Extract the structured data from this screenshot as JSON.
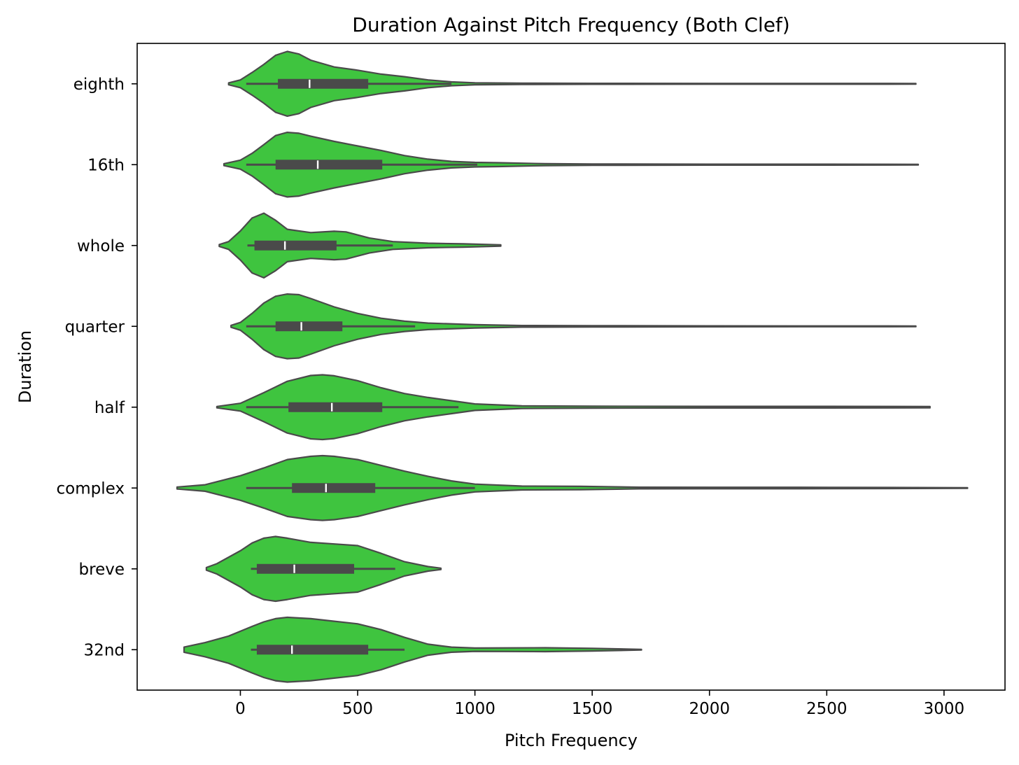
{
  "chart_data": {
    "type": "violin",
    "orientation": "horizontal",
    "title": "Duration Against Pitch Frequency (Both Clef)",
    "xlabel": "Pitch Frequency",
    "ylabel": "Duration",
    "xlim": [
      -440,
      3260
    ],
    "xticks": [
      0,
      500,
      1000,
      1500,
      2000,
      2500,
      3000
    ],
    "categories": [
      "eighth",
      "16th",
      "whole",
      "quarter",
      "half",
      "complex",
      "breve",
      "32nd"
    ],
    "colors": {
      "fill": "#3fc43f",
      "edge": "#4a4a4a",
      "median": "#ffffff"
    },
    "grid": false,
    "legend": "none",
    "series": [
      {
        "category": "eighth",
        "q1": 160,
        "median": 295,
        "q3": 545,
        "whisker_low": 25,
        "whisker_high": 900,
        "range": [
          -50,
          2880
        ],
        "density": [
          [
            -50,
            0.03
          ],
          [
            0,
            0.12
          ],
          [
            50,
            0.35
          ],
          [
            100,
            0.6
          ],
          [
            150,
            0.88
          ],
          [
            200,
            1.0
          ],
          [
            250,
            0.92
          ],
          [
            300,
            0.73
          ],
          [
            400,
            0.52
          ],
          [
            500,
            0.42
          ],
          [
            600,
            0.3
          ],
          [
            700,
            0.22
          ],
          [
            800,
            0.12
          ],
          [
            900,
            0.06
          ],
          [
            1000,
            0.03
          ],
          [
            1200,
            0.02
          ],
          [
            1500,
            0.015
          ],
          [
            2000,
            0.012
          ],
          [
            2500,
            0.012
          ],
          [
            2880,
            0.01
          ]
        ]
      },
      {
        "category": "16th",
        "q1": 150,
        "median": 330,
        "q3": 605,
        "whisker_low": 25,
        "whisker_high": 1010,
        "range": [
          -70,
          2890
        ],
        "density": [
          [
            -70,
            0.03
          ],
          [
            0,
            0.14
          ],
          [
            50,
            0.35
          ],
          [
            100,
            0.62
          ],
          [
            150,
            0.9
          ],
          [
            200,
            1.0
          ],
          [
            250,
            0.97
          ],
          [
            300,
            0.88
          ],
          [
            400,
            0.72
          ],
          [
            500,
            0.58
          ],
          [
            600,
            0.44
          ],
          [
            700,
            0.28
          ],
          [
            800,
            0.17
          ],
          [
            900,
            0.1
          ],
          [
            1000,
            0.07
          ],
          [
            1100,
            0.06
          ],
          [
            1300,
            0.03
          ],
          [
            1500,
            0.02
          ],
          [
            2000,
            0.015
          ],
          [
            2500,
            0.013
          ],
          [
            2890,
            0.01
          ]
        ]
      },
      {
        "category": "whole",
        "q1": 60,
        "median": 190,
        "q3": 410,
        "whisker_low": 30,
        "whisker_high": 650,
        "range": [
          -90,
          1110
        ],
        "density": [
          [
            -90,
            0.03
          ],
          [
            -50,
            0.12
          ],
          [
            0,
            0.45
          ],
          [
            50,
            0.85
          ],
          [
            100,
            1.0
          ],
          [
            150,
            0.78
          ],
          [
            200,
            0.5
          ],
          [
            300,
            0.4
          ],
          [
            400,
            0.44
          ],
          [
            450,
            0.42
          ],
          [
            550,
            0.23
          ],
          [
            650,
            0.12
          ],
          [
            800,
            0.07
          ],
          [
            950,
            0.05
          ],
          [
            1110,
            0.02
          ]
        ]
      },
      {
        "category": "quarter",
        "q1": 150,
        "median": 260,
        "q3": 435,
        "whisker_low": 25,
        "whisker_high": 745,
        "range": [
          -40,
          2880
        ],
        "density": [
          [
            -40,
            0.03
          ],
          [
            0,
            0.12
          ],
          [
            50,
            0.4
          ],
          [
            100,
            0.72
          ],
          [
            150,
            0.93
          ],
          [
            200,
            1.0
          ],
          [
            250,
            0.98
          ],
          [
            300,
            0.86
          ],
          [
            400,
            0.6
          ],
          [
            500,
            0.4
          ],
          [
            600,
            0.25
          ],
          [
            700,
            0.16
          ],
          [
            800,
            0.1
          ],
          [
            1000,
            0.05
          ],
          [
            1200,
            0.025
          ],
          [
            1500,
            0.02
          ],
          [
            2000,
            0.015
          ],
          [
            2500,
            0.012
          ],
          [
            2880,
            0.01
          ]
        ]
      },
      {
        "category": "half",
        "q1": 205,
        "median": 390,
        "q3": 605,
        "whisker_low": 25,
        "whisker_high": 930,
        "range": [
          -100,
          2940
        ],
        "density": [
          [
            -100,
            0.02
          ],
          [
            0,
            0.12
          ],
          [
            100,
            0.45
          ],
          [
            200,
            0.8
          ],
          [
            300,
            0.98
          ],
          [
            350,
            1.0
          ],
          [
            400,
            0.97
          ],
          [
            500,
            0.82
          ],
          [
            600,
            0.6
          ],
          [
            700,
            0.42
          ],
          [
            800,
            0.3
          ],
          [
            900,
            0.2
          ],
          [
            1000,
            0.1
          ],
          [
            1200,
            0.04
          ],
          [
            1500,
            0.03
          ],
          [
            2000,
            0.025
          ],
          [
            2500,
            0.025
          ],
          [
            2940,
            0.02
          ]
        ]
      },
      {
        "category": "complex",
        "q1": 220,
        "median": 365,
        "q3": 575,
        "whisker_low": 25,
        "whisker_high": 1000,
        "range": [
          -270,
          3100
        ],
        "density": [
          [
            -270,
            0.03
          ],
          [
            -150,
            0.1
          ],
          [
            0,
            0.38
          ],
          [
            100,
            0.62
          ],
          [
            200,
            0.88
          ],
          [
            300,
            0.98
          ],
          [
            350,
            1.0
          ],
          [
            400,
            0.98
          ],
          [
            500,
            0.88
          ],
          [
            600,
            0.7
          ],
          [
            700,
            0.52
          ],
          [
            800,
            0.36
          ],
          [
            900,
            0.22
          ],
          [
            1000,
            0.12
          ],
          [
            1200,
            0.06
          ],
          [
            1450,
            0.05
          ],
          [
            1700,
            0.025
          ],
          [
            2000,
            0.022
          ],
          [
            2500,
            0.02
          ],
          [
            3100,
            0.01
          ]
        ]
      },
      {
        "category": "breve",
        "q1": 70,
        "median": 230,
        "q3": 485,
        "whisker_low": 45,
        "whisker_high": 660,
        "range": [
          -145,
          855
        ],
        "density": [
          [
            -145,
            0.04
          ],
          [
            -100,
            0.16
          ],
          [
            0,
            0.56
          ],
          [
            50,
            0.8
          ],
          [
            100,
            0.95
          ],
          [
            150,
            1.0
          ],
          [
            200,
            0.95
          ],
          [
            300,
            0.82
          ],
          [
            400,
            0.77
          ],
          [
            500,
            0.72
          ],
          [
            600,
            0.48
          ],
          [
            700,
            0.22
          ],
          [
            800,
            0.07
          ],
          [
            855,
            0.02
          ]
        ]
      },
      {
        "category": "32nd",
        "q1": 70,
        "median": 220,
        "q3": 545,
        "whisker_low": 45,
        "whisker_high": 700,
        "range": [
          -240,
          1710
        ],
        "density": [
          [
            -240,
            0.08
          ],
          [
            -150,
            0.22
          ],
          [
            -50,
            0.42
          ],
          [
            50,
            0.72
          ],
          [
            100,
            0.86
          ],
          [
            150,
            0.96
          ],
          [
            200,
            1.0
          ],
          [
            300,
            0.96
          ],
          [
            400,
            0.88
          ],
          [
            500,
            0.8
          ],
          [
            600,
            0.62
          ],
          [
            700,
            0.38
          ],
          [
            800,
            0.17
          ],
          [
            900,
            0.08
          ],
          [
            1000,
            0.05
          ],
          [
            1300,
            0.06
          ],
          [
            1500,
            0.04
          ],
          [
            1710,
            0.01
          ]
        ]
      }
    ]
  }
}
